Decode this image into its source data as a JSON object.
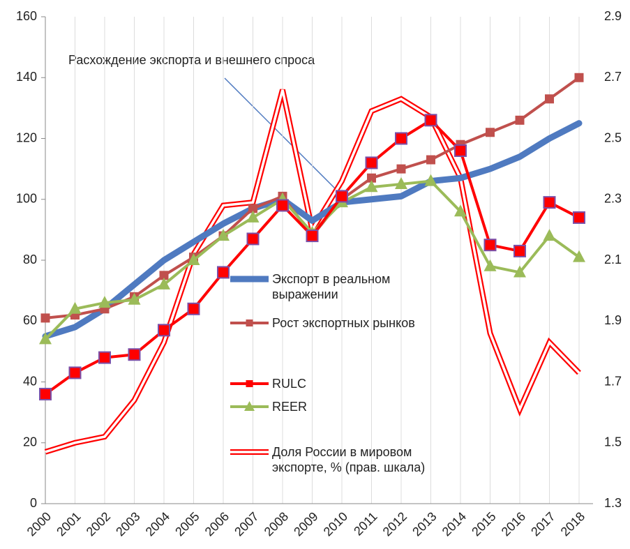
{
  "chart_data": {
    "type": "line",
    "annotation": "Расхождение  экспорта и внешнего спроса",
    "categories": [
      "2000",
      "2001",
      "2002",
      "2003",
      "2004",
      "2005",
      "2006",
      "2007",
      "2008",
      "2009",
      "2010",
      "2011",
      "2012",
      "2013",
      "2014",
      "2015",
      "2016",
      "2017",
      "2018"
    ],
    "ylim": [
      0,
      160
    ],
    "yticks": [
      0,
      20,
      40,
      60,
      80,
      100,
      120,
      140,
      160
    ],
    "y2lim": [
      1.3,
      2.9
    ],
    "y2ticks": [
      1.3,
      1.5,
      1.7,
      1.9,
      2.1,
      2.3,
      2.5,
      2.7,
      2.9
    ],
    "grid": true,
    "series": [
      {
        "name": "Экспорт в реальном выражении",
        "color": "#4f7ac0",
        "marker": "none",
        "values": [
          55,
          58,
          64,
          72,
          80,
          86,
          92,
          97,
          100,
          93,
          99,
          100,
          101,
          106,
          107,
          110,
          114,
          120,
          125
        ]
      },
      {
        "name": "Рост экспортных рынков",
        "color": "#c0504d",
        "marker": "square",
        "values": [
          61,
          62,
          64,
          68,
          75,
          81,
          88,
          97,
          101,
          88,
          100,
          107,
          110,
          113,
          118,
          122,
          126,
          133,
          140
        ]
      },
      {
        "name": "RULC",
        "color": "#ff0000",
        "marker": "square",
        "values": [
          36,
          43,
          48,
          49,
          57,
          64,
          76,
          87,
          98,
          88,
          101,
          112,
          120,
          126,
          116,
          85,
          83,
          99,
          94
        ]
      },
      {
        "name": "REER",
        "color": "#9bbb59",
        "marker": "triangle",
        "values": [
          54,
          64,
          66,
          67,
          72,
          80,
          88,
          94,
          100,
          89,
          99,
          104,
          105,
          106,
          96,
          78,
          76,
          88,
          81
        ]
      },
      {
        "name": "Доля России  в мировом экспорте, % (прав. шкала)",
        "color": "#ff0000",
        "marker": "double",
        "axis": "y2",
        "values": [
          1.47,
          1.5,
          1.52,
          1.64,
          1.83,
          2.12,
          2.28,
          2.29,
          2.66,
          2.2,
          2.36,
          2.59,
          2.63,
          2.57,
          2.37,
          1.86,
          1.61,
          1.83,
          1.73
        ]
      }
    ]
  }
}
